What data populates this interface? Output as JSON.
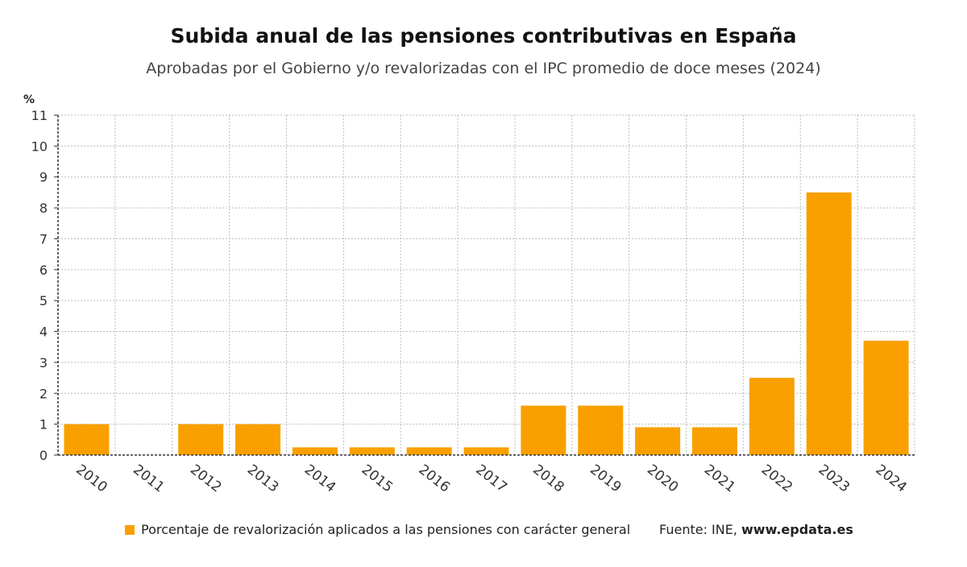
{
  "chart_data": {
    "type": "bar",
    "title": "Subida anual de las pensiones contributivas en España",
    "subtitle": "Aprobadas por el Gobierno y/o revalorizadas con el IPC promedio de doce meses (2024)",
    "ylabel": "%",
    "categories": [
      "2010",
      "2011",
      "2012",
      "2013",
      "2014",
      "2015",
      "2016",
      "2017",
      "2018",
      "2019",
      "2020",
      "2021",
      "2022",
      "2023",
      "2024"
    ],
    "series": [
      {
        "name": "Porcentaje de revalorización aplicados a las pensiones con carácter general",
        "values": [
          1,
          0,
          1,
          1,
          0.25,
          0.25,
          0.25,
          0.25,
          1.6,
          1.6,
          0.9,
          0.9,
          2.5,
          8.5,
          3.7
        ],
        "color": "#f9a000"
      }
    ],
    "ylim": [
      0,
      11
    ],
    "yticks": [
      0,
      1,
      2,
      3,
      4,
      5,
      6,
      7,
      8,
      9,
      10,
      11
    ],
    "grid": true,
    "legend_position": "bottom"
  },
  "source": {
    "prefix": "Fuente: INE, ",
    "site": "www.epdata.es"
  }
}
